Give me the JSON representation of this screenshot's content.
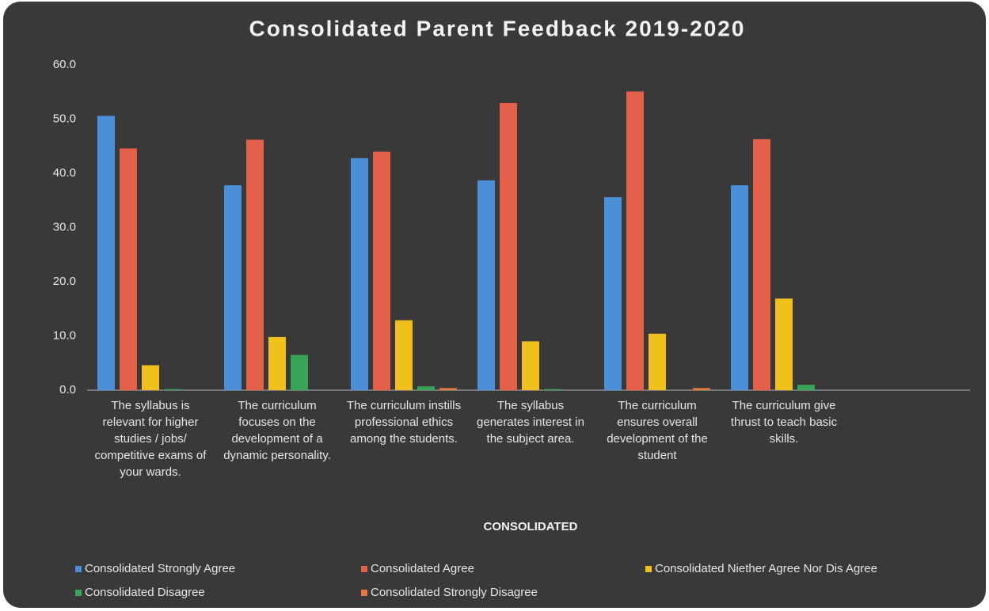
{
  "chart_data": {
    "type": "bar",
    "title": "Consolidated Parent Feedback 2019-2020",
    "x_label": "CONSOLIDATED",
    "categories": [
      "The syllabus is relevant for higher studies / jobs/ competitive exams of your wards.",
      "The curriculum focuses on the development of a dynamic personality.",
      "The curriculum instills professional ethics among the students.",
      "The syllabus generates interest in the subject area.",
      "The curriculum ensures overall development of the student",
      "The curriculum give thrust to teach basic skills.",
      null
    ],
    "series": [
      {
        "name": "Consolidated Strongly Agree",
        "color": "#4a8fd8",
        "values": [
          50.6,
          37.8,
          42.8,
          38.7,
          35.6,
          37.8,
          null
        ]
      },
      {
        "name": "Consolidated Agree",
        "color": "#e5604b",
        "values": [
          44.6,
          46.2,
          44.0,
          53.0,
          55.1,
          46.3,
          null
        ]
      },
      {
        "name": "Consolidated Niether Agree Nor Dis Agree",
        "color": "#f2c01a",
        "values": [
          4.6,
          9.8,
          12.9,
          9.0,
          10.4,
          16.9,
          null
        ]
      },
      {
        "name": "Consolidated Disagree",
        "color": "#39a457",
        "values": [
          0.2,
          6.5,
          0.7,
          0.2,
          0.0,
          1.0,
          null
        ]
      },
      {
        "name": "Consolidated Strongly Disagree",
        "color": "#e8773b",
        "values": [
          0.0,
          0.0,
          0.4,
          0.0,
          0.4,
          0.0,
          null
        ]
      }
    ],
    "ylim": [
      0,
      60
    ],
    "yticks": [
      {
        "value": 0,
        "label": "0.0"
      },
      {
        "value": 10,
        "label": "10.0"
      },
      {
        "value": 20,
        "label": "20.0"
      },
      {
        "value": 30,
        "label": "30.0"
      },
      {
        "value": 40,
        "label": "40.0"
      },
      {
        "value": 50,
        "label": "50.0"
      },
      {
        "value": 60,
        "label": "60.0"
      }
    ],
    "grid": false,
    "legend": "bottom"
  }
}
